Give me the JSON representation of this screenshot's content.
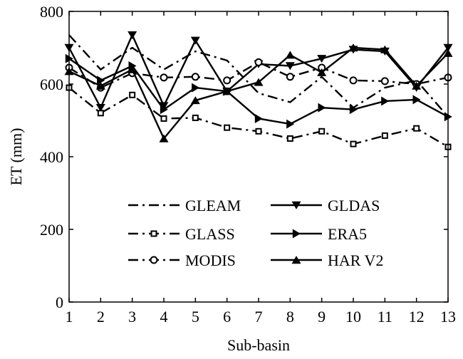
{
  "chart_data": {
    "type": "line",
    "title": "",
    "xlabel": "Sub-basin",
    "ylabel": "ET (mm)",
    "x": [
      1,
      2,
      3,
      4,
      5,
      6,
      7,
      8,
      9,
      10,
      11,
      12,
      13
    ],
    "xlim": [
      1,
      13
    ],
    "ylim": [
      0,
      800
    ],
    "yticks": [
      0,
      200,
      400,
      600,
      800
    ],
    "grid": false,
    "legend_position": "bottom-center, two columns",
    "series": [
      {
        "name": "GLEAM",
        "line_style": "dash-dot",
        "marker": "none",
        "values": [
          735,
          640,
          700,
          640,
          690,
          665,
          575,
          550,
          620,
          535,
          590,
          610,
          510
        ]
      },
      {
        "name": "GLDAS",
        "line_style": "solid",
        "marker": "triangle-down",
        "values": [
          700,
          535,
          735,
          540,
          720,
          580,
          655,
          650,
          670,
          695,
          690,
          590,
          700
        ]
      },
      {
        "name": "GLASS",
        "line_style": "dash-dot",
        "marker": "square",
        "values": [
          590,
          520,
          570,
          505,
          507,
          480,
          470,
          450,
          470,
          435,
          458,
          478,
          427
        ]
      },
      {
        "name": "ERA5",
        "line_style": "solid",
        "marker": "triangle-right",
        "values": [
          670,
          610,
          650,
          530,
          590,
          580,
          505,
          490,
          535,
          530,
          553,
          557,
          510
        ]
      },
      {
        "name": "MODIS",
        "line_style": "dash-dot",
        "marker": "circle",
        "values": [
          645,
          590,
          630,
          618,
          620,
          610,
          660,
          620,
          645,
          610,
          608,
          600,
          618
        ]
      },
      {
        "name": "HAR V2",
        "line_style": "solid",
        "marker": "triangle-up",
        "values": [
          635,
          595,
          640,
          450,
          555,
          580,
          605,
          680,
          632,
          700,
          695,
          595,
          685
        ]
      }
    ],
    "colors": {
      "line": "#000000",
      "background": "#ffffff"
    }
  }
}
